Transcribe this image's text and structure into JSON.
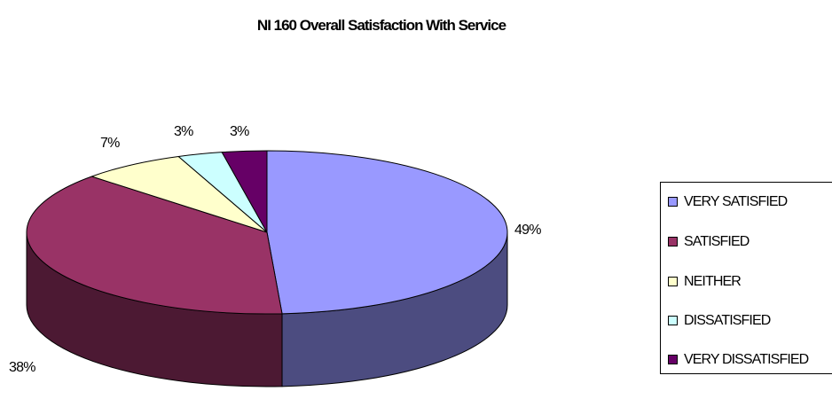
{
  "chart_data": {
    "type": "pie",
    "title": "NI 160 Overall Satisfaction With Service",
    "three_d": true,
    "legend_placement": "right",
    "slices": [
      {
        "name": "VERY SATISFIED",
        "value": 49,
        "label": "49%",
        "color": "#9999FF",
        "side_color": "#4C4C80"
      },
      {
        "name": "SATISFIED",
        "value": 38,
        "label": "38%",
        "color": "#993366",
        "side_color": "#4C1933"
      },
      {
        "name": "NEITHER",
        "value": 7,
        "label": "7%",
        "color": "#FFFFCC",
        "side_color": "#808066"
      },
      {
        "name": "DISSATISFIED",
        "value": 3,
        "label": "3%",
        "color": "#CCFFFF",
        "side_color": "#668080"
      },
      {
        "name": "VERY DISSATISFIED",
        "value": 3,
        "label": "3%",
        "color": "#660066",
        "side_color": "#330033"
      }
    ]
  }
}
